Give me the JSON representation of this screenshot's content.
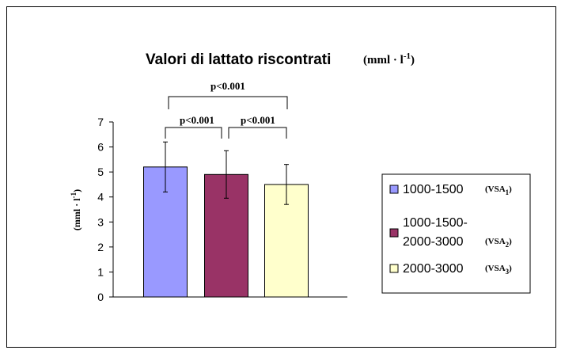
{
  "chart_data": {
    "type": "bar",
    "title": "Valori di lattato riscontrati",
    "title_unit": {
      "base": "(mml · l",
      "sup": "-1",
      "close": ")"
    },
    "ylabel": {
      "base": "(mml · l",
      "sup": "-1",
      "close": ")"
    },
    "ylim": [
      0,
      7
    ],
    "yticks": [
      "0",
      "1",
      "2",
      "3",
      "4",
      "5",
      "6",
      "7"
    ],
    "series": [
      {
        "legend": "1000-1500",
        "legend_lines": [
          "1000-1500"
        ],
        "tag": {
          "base": "(VSA",
          "sub": "1",
          "close": ")"
        },
        "value": 5.2,
        "err_low": 4.2,
        "err_high": 6.2,
        "color": "#9999ff"
      },
      {
        "legend": "1000-1500-2000-3000",
        "legend_lines": [
          "1000-1500-",
          "2000-3000"
        ],
        "tag": {
          "base": "(VSA",
          "sub": "2",
          "close": ")"
        },
        "value": 4.9,
        "err_low": 3.95,
        "err_high": 5.85,
        "color": "#993366"
      },
      {
        "legend": "2000-3000",
        "legend_lines": [
          "2000-3000"
        ],
        "tag": {
          "base": "(VSA",
          "sub": "3",
          "close": ")"
        },
        "value": 4.5,
        "err_low": 3.7,
        "err_high": 5.3,
        "color": "#ffffcc"
      }
    ],
    "significance": [
      {
        "label": "p<0.001",
        "from": 0,
        "to": 2
      },
      {
        "label": "p<0.001",
        "from": 0,
        "to": 1
      },
      {
        "label": "p<0.001",
        "from": 1,
        "to": 2
      }
    ],
    "legend_position": "right",
    "grid": false
  }
}
